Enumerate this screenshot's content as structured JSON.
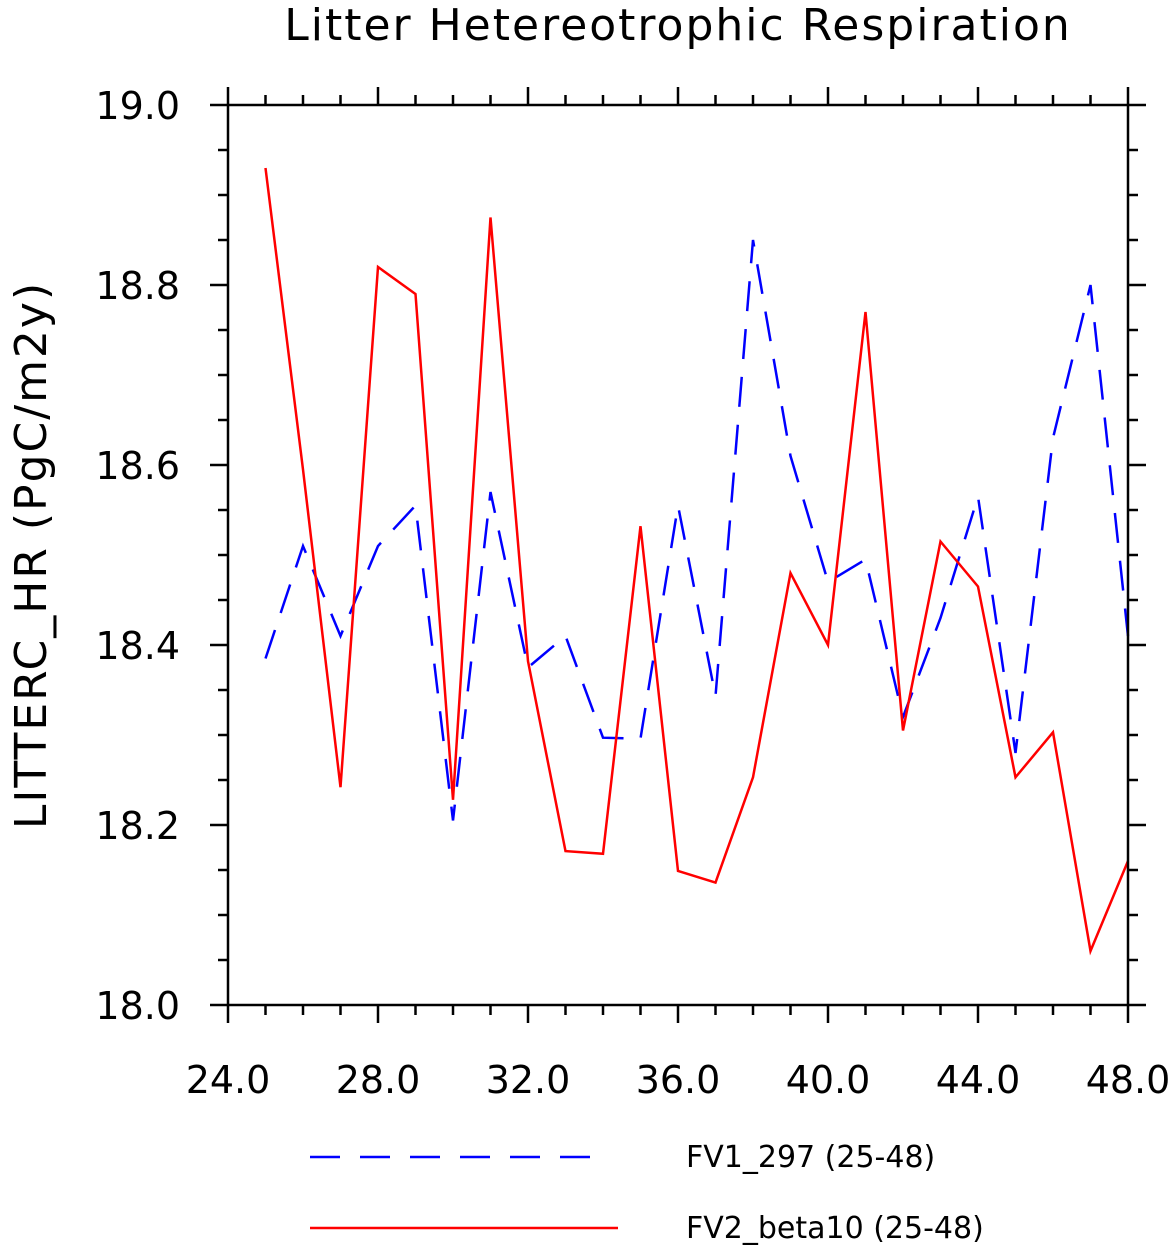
{
  "chart_data": {
    "type": "line",
    "title": "Litter Hetereotrophic Respiration",
    "xlabel": "",
    "ylabel": "LITTERC_HR  (PgC/m2y)",
    "xlim": [
      24.0,
      48.0
    ],
    "ylim": [
      18.0,
      19.0
    ],
    "x_ticks": [
      "24.0",
      "28.0",
      "32.0",
      "36.0",
      "40.0",
      "44.0",
      "48.0"
    ],
    "y_ticks": [
      "18.0",
      "18.2",
      "18.4",
      "18.6",
      "18.8",
      "19.0"
    ],
    "grid": false,
    "legend_position": "bottom",
    "x": [
      25,
      26,
      27,
      28,
      29,
      30,
      31,
      32,
      33,
      34,
      35,
      36,
      37,
      38,
      39,
      40,
      41,
      42,
      43,
      44,
      45,
      46,
      47,
      48
    ],
    "series": [
      {
        "name": "FV1_297 (25-48)",
        "color": "#0000ff",
        "style": "dashed",
        "values": [
          18.385,
          18.51,
          18.41,
          18.51,
          18.555,
          18.205,
          18.57,
          18.375,
          18.41,
          18.297,
          18.296,
          18.555,
          18.343,
          18.85,
          18.61,
          18.47,
          18.495,
          18.32,
          18.43,
          18.565,
          18.28,
          18.63,
          18.8,
          18.41
        ]
      },
      {
        "name": "FV2_beta10 (25-48)",
        "color": "#ff0000",
        "style": "solid",
        "values": [
          18.93,
          18.595,
          18.242,
          18.82,
          18.79,
          18.228,
          18.875,
          18.382,
          18.171,
          18.168,
          18.532,
          18.149,
          18.136,
          18.253,
          18.48,
          18.4,
          18.77,
          18.305,
          18.515,
          18.465,
          18.253,
          18.303,
          18.06,
          18.16
        ]
      }
    ]
  }
}
